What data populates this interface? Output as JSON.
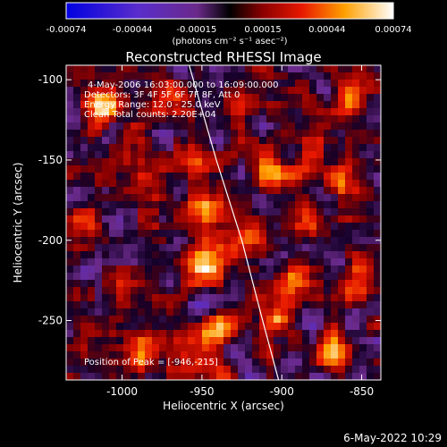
{
  "chart_data": {
    "type": "heatmap",
    "title": "Reconstructed RHESSI Image",
    "xlabel": "Heliocentric X (arcsec)",
    "ylabel": "Heliocentric Y (arcsec)",
    "xlim": [
      -1035,
      -838
    ],
    "ylim": [
      -287,
      -91
    ],
    "x_ticks": [
      -1000,
      -950,
      -900,
      -850
    ],
    "x_tick_labels": [
      "-1000",
      "-950",
      "-900",
      "-850"
    ],
    "y_ticks": [
      -100,
      -150,
      -200,
      -250
    ],
    "y_tick_labels": [
      "-100",
      "-150",
      "-200",
      "-250"
    ],
    "colorbar": {
      "range": [
        -0.00074,
        0.00074
      ],
      "ticks": [
        -0.00074,
        -0.00044,
        -0.00015,
        0.00015,
        0.00044,
        0.00074
      ],
      "tick_labels": [
        "-0.00074",
        "-0.00044",
        "-0.00015",
        "0.00015",
        "0.00044",
        "0.00074"
      ],
      "unit": "(photons cm⁻² s⁻¹ asec⁻²)"
    },
    "annotations": [
      "4-May-2006 16:03:00.000 to 16:09:00.000",
      "Detectors: 3F 4F 5F 6F 7F 8F, Att 0",
      "Energy Range: 12.0 - 25.0 keV",
      "Clean    Total counts: 2.20E+04"
    ],
    "peak_label": "Position of Peak = [-946,-215]",
    "peak_position": [
      -946,
      -215
    ],
    "limb_line": [
      [
        -958,
        -91
      ],
      [
        -941,
        -150
      ],
      [
        -925,
        -200
      ],
      [
        -912,
        -250
      ],
      [
        -902,
        -287
      ]
    ],
    "hotspots": [
      {
        "x": -1012,
        "y": -118,
        "v": 0.00062
      },
      {
        "x": -988,
        "y": -165,
        "v": 0.00045
      },
      {
        "x": -1025,
        "y": -190,
        "v": 0.0004
      },
      {
        "x": -1000,
        "y": -225,
        "v": 0.00035
      },
      {
        "x": -1020,
        "y": -262,
        "v": 0.0003
      },
      {
        "x": -985,
        "y": -268,
        "v": 0.00045
      },
      {
        "x": -968,
        "y": -110,
        "v": 0.00035
      },
      {
        "x": -955,
        "y": -150,
        "v": 0.0004
      },
      {
        "x": -946,
        "y": -215,
        "v": 0.00074
      },
      {
        "x": -950,
        "y": -180,
        "v": 0.0004
      },
      {
        "x": -940,
        "y": -255,
        "v": 0.00055
      },
      {
        "x": -955,
        "y": -275,
        "v": 0.0004
      },
      {
        "x": -918,
        "y": -112,
        "v": 0.0003
      },
      {
        "x": -905,
        "y": -160,
        "v": 0.00045
      },
      {
        "x": -920,
        "y": -195,
        "v": 0.0004
      },
      {
        "x": -895,
        "y": -230,
        "v": 0.00035
      },
      {
        "x": -910,
        "y": -250,
        "v": 0.0004
      },
      {
        "x": -885,
        "y": -190,
        "v": 0.0003
      },
      {
        "x": -855,
        "y": -110,
        "v": 0.00035
      },
      {
        "x": -862,
        "y": -165,
        "v": 0.0006
      },
      {
        "x": -850,
        "y": -222,
        "v": 0.00045
      },
      {
        "x": -870,
        "y": -268,
        "v": 0.00045
      },
      {
        "x": -880,
        "y": -140,
        "v": 0.00025
      },
      {
        "x": -995,
        "y": -140,
        "v": 0.00028
      }
    ],
    "footer_date": "6-May-2022 10:29"
  }
}
